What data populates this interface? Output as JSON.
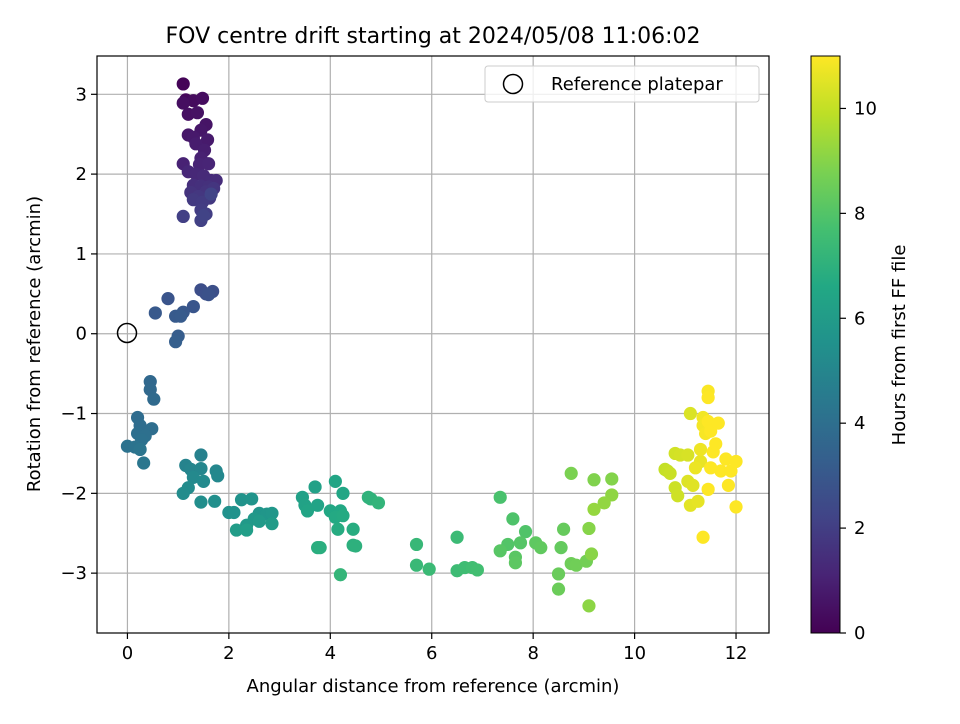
{
  "chart_data": {
    "type": "scatter",
    "title": "FOV centre drift starting at 2024/05/08 11:06:02",
    "xlabel": "Angular distance from reference (arcmin)",
    "ylabel": "Rotation from reference (arcmin)",
    "xlim": [
      -0.6,
      12.65
    ],
    "ylim": [
      -3.75,
      3.48
    ],
    "xticks": [
      "0",
      "2",
      "4",
      "6",
      "8",
      "10",
      "12"
    ],
    "yticks": [
      "−3",
      "−2",
      "−1",
      "0",
      "1",
      "2",
      "3"
    ],
    "grid": true,
    "legend": {
      "placement": "top-right",
      "label": "Reference platepar"
    },
    "reference_point": {
      "x": 0,
      "y": 0
    },
    "colorbar": {
      "label": "Hours from first FF file",
      "range": [
        0,
        11
      ],
      "ticks": [
        "0",
        "2",
        "4",
        "6",
        "8",
        "10"
      ],
      "colormap": "viridis"
    },
    "points": [
      [
        1.1,
        3.13,
        0.1
      ],
      [
        1.15,
        2.93,
        0.2
      ],
      [
        1.3,
        2.92,
        0.3
      ],
      [
        1.48,
        2.95,
        0.35
      ],
      [
        1.1,
        2.89,
        0.4
      ],
      [
        1.2,
        2.75,
        0.45
      ],
      [
        1.38,
        2.77,
        0.5
      ],
      [
        1.55,
        2.62,
        0.6
      ],
      [
        1.45,
        2.55,
        0.65
      ],
      [
        1.2,
        2.49,
        0.7
      ],
      [
        1.3,
        2.46,
        0.75
      ],
      [
        1.58,
        2.43,
        0.8
      ],
      [
        1.35,
        2.38,
        0.85
      ],
      [
        1.52,
        2.3,
        0.9
      ],
      [
        1.45,
        2.2,
        1.0
      ],
      [
        1.1,
        2.13,
        1.05
      ],
      [
        1.42,
        2.12,
        1.1
      ],
      [
        1.6,
        2.13,
        1.15
      ],
      [
        1.2,
        2.03,
        1.2
      ],
      [
        1.35,
        2.0,
        1.25
      ],
      [
        1.5,
        1.98,
        1.3
      ],
      [
        1.65,
        1.92,
        1.35
      ],
      [
        1.75,
        1.92,
        1.4
      ],
      [
        1.3,
        1.86,
        1.45
      ],
      [
        1.45,
        1.85,
        1.5
      ],
      [
        1.6,
        1.84,
        1.55
      ],
      [
        1.25,
        1.77,
        1.6
      ],
      [
        1.55,
        1.78,
        1.65
      ],
      [
        1.7,
        1.82,
        1.7
      ],
      [
        1.4,
        1.72,
        1.75
      ],
      [
        1.62,
        1.7,
        1.8
      ],
      [
        1.3,
        1.68,
        1.85
      ],
      [
        1.48,
        1.65,
        1.9
      ],
      [
        1.45,
        1.55,
        1.95
      ],
      [
        1.55,
        1.5,
        2.0
      ],
      [
        1.1,
        1.47,
        2.05
      ],
      [
        1.45,
        1.42,
        2.1
      ],
      [
        1.5,
        1.48,
        2.15
      ],
      [
        1.65,
        1.75,
        2.2
      ],
      [
        1.45,
        0.55,
        2.6
      ],
      [
        1.68,
        0.53,
        2.65
      ],
      [
        1.55,
        0.5,
        2.7
      ],
      [
        1.6,
        0.49,
        2.75
      ],
      [
        0.8,
        0.44,
        2.85
      ],
      [
        1.3,
        0.34,
        2.9
      ],
      [
        1.1,
        0.27,
        3.0
      ],
      [
        0.55,
        0.26,
        3.05
      ],
      [
        0.95,
        0.22,
        3.1
      ],
      [
        1.05,
        0.22,
        3.15
      ],
      [
        1.0,
        -0.03,
        3.2
      ],
      [
        0.95,
        -0.1,
        3.3
      ],
      [
        0.45,
        -0.6,
        3.7
      ],
      [
        0.45,
        -0.7,
        3.75
      ],
      [
        0.52,
        -0.82,
        3.8
      ],
      [
        0.2,
        -1.05,
        3.85
      ],
      [
        0.25,
        -1.15,
        3.9
      ],
      [
        0.48,
        -1.19,
        3.95
      ],
      [
        0.2,
        -1.25,
        4.0
      ],
      [
        0.35,
        -1.28,
        4.05
      ],
      [
        0.28,
        -1.33,
        4.1
      ],
      [
        0.0,
        -1.41,
        4.15
      ],
      [
        0.15,
        -1.42,
        4.2
      ],
      [
        0.25,
        -1.45,
        4.25
      ],
      [
        0.32,
        -1.62,
        4.3
      ],
      [
        1.45,
        -1.52,
        4.8
      ],
      [
        1.15,
        -1.65,
        4.9
      ],
      [
        1.25,
        -1.7,
        4.95
      ],
      [
        1.45,
        -1.69,
        5.0
      ],
      [
        1.75,
        -1.72,
        5.05
      ],
      [
        1.78,
        -1.78,
        5.1
      ],
      [
        1.3,
        -1.8,
        5.15
      ],
      [
        1.5,
        -1.85,
        5.2
      ],
      [
        1.2,
        -1.93,
        5.25
      ],
      [
        1.1,
        -2.0,
        5.3
      ],
      [
        1.45,
        -2.11,
        5.35
      ],
      [
        1.72,
        -2.1,
        5.4
      ],
      [
        2.0,
        -2.24,
        5.5
      ],
      [
        2.1,
        -2.24,
        5.55
      ],
      [
        2.25,
        -2.08,
        5.6
      ],
      [
        2.45,
        -2.07,
        5.65
      ],
      [
        2.6,
        -2.25,
        5.7
      ],
      [
        2.75,
        -2.26,
        5.75
      ],
      [
        2.85,
        -2.25,
        5.8
      ],
      [
        2.5,
        -2.32,
        5.85
      ],
      [
        2.35,
        -2.4,
        5.9
      ],
      [
        2.6,
        -2.35,
        5.95
      ],
      [
        2.85,
        -2.38,
        6.0
      ],
      [
        2.15,
        -2.46,
        6.05
      ],
      [
        2.35,
        -2.46,
        6.1
      ],
      [
        3.45,
        -2.05,
        6.2
      ],
      [
        3.7,
        -1.92,
        6.25
      ],
      [
        3.5,
        -2.15,
        6.3
      ],
      [
        3.75,
        -2.15,
        6.35
      ],
      [
        3.55,
        -2.22,
        6.4
      ],
      [
        4.1,
        -1.85,
        6.45
      ],
      [
        4.25,
        -2.0,
        6.5
      ],
      [
        4.0,
        -2.22,
        6.55
      ],
      [
        4.2,
        -2.22,
        6.6
      ],
      [
        4.1,
        -2.3,
        6.65
      ],
      [
        4.25,
        -2.28,
        6.7
      ],
      [
        4.15,
        -2.45,
        6.75
      ],
      [
        4.45,
        -2.45,
        6.8
      ],
      [
        3.75,
        -2.68,
        6.85
      ],
      [
        3.8,
        -2.68,
        6.9
      ],
      [
        4.45,
        -2.65,
        6.95
      ],
      [
        4.5,
        -2.66,
        7.0
      ],
      [
        4.75,
        -2.05,
        7.05
      ],
      [
        4.8,
        -2.07,
        7.1
      ],
      [
        4.95,
        -2.12,
        7.15
      ],
      [
        4.2,
        -3.02,
        7.2
      ],
      [
        5.7,
        -2.64,
        7.3
      ],
      [
        5.7,
        -2.9,
        7.35
      ],
      [
        5.95,
        -2.95,
        7.4
      ],
      [
        6.5,
        -2.55,
        7.45
      ],
      [
        6.5,
        -2.97,
        7.5
      ],
      [
        6.65,
        -2.93,
        7.55
      ],
      [
        6.8,
        -2.93,
        7.6
      ],
      [
        6.9,
        -2.96,
        7.65
      ],
      [
        7.35,
        -2.05,
        7.8
      ],
      [
        7.6,
        -2.32,
        7.9
      ],
      [
        7.85,
        -2.48,
        7.95
      ],
      [
        7.5,
        -2.64,
        8.0
      ],
      [
        7.75,
        -2.62,
        8.05
      ],
      [
        7.35,
        -2.72,
        8.1
      ],
      [
        7.65,
        -2.8,
        8.15
      ],
      [
        7.65,
        -2.87,
        8.2
      ],
      [
        8.05,
        -2.62,
        8.25
      ],
      [
        8.15,
        -2.68,
        8.3
      ],
      [
        8.55,
        -2.68,
        8.35
      ],
      [
        8.6,
        -2.45,
        8.4
      ],
      [
        8.5,
        -3.01,
        8.45
      ],
      [
        8.5,
        -3.2,
        8.5
      ],
      [
        8.75,
        -2.88,
        8.55
      ],
      [
        8.85,
        -2.9,
        8.6
      ],
      [
        9.05,
        -2.85,
        8.65
      ],
      [
        8.75,
        -1.75,
        8.8
      ],
      [
        9.2,
        -1.83,
        8.9
      ],
      [
        9.55,
        -1.82,
        8.95
      ],
      [
        9.1,
        -2.44,
        9.0
      ],
      [
        9.15,
        -2.76,
        9.05
      ],
      [
        9.1,
        -3.41,
        9.1
      ],
      [
        9.55,
        -2.02,
        9.15
      ],
      [
        9.4,
        -2.12,
        9.2
      ],
      [
        9.2,
        -2.2,
        9.25
      ],
      [
        10.6,
        -1.7,
        10.0
      ],
      [
        10.65,
        -1.72,
        10.05
      ],
      [
        10.7,
        -1.75,
        10.1
      ],
      [
        10.8,
        -1.93,
        10.15
      ],
      [
        10.85,
        -2.03,
        10.2
      ],
      [
        10.8,
        -1.5,
        10.25
      ],
      [
        10.9,
        -1.52,
        10.3
      ],
      [
        11.05,
        -1.52,
        10.35
      ],
      [
        11.1,
        -1.0,
        10.4
      ],
      [
        11.05,
        -1.85,
        10.45
      ],
      [
        11.15,
        -1.9,
        10.5
      ],
      [
        11.1,
        -2.15,
        10.55
      ],
      [
        11.25,
        -2.1,
        10.6
      ],
      [
        11.3,
        -1.6,
        10.65
      ],
      [
        11.2,
        -1.68,
        10.7
      ],
      [
        11.3,
        -1.45,
        10.75
      ],
      [
        11.35,
        -1.05,
        10.8
      ],
      [
        11.35,
        -1.15,
        10.85
      ],
      [
        11.4,
        -1.25,
        10.9
      ],
      [
        11.45,
        -0.72,
        10.95
      ],
      [
        11.45,
        -0.8,
        11.0
      ],
      [
        11.45,
        -1.1,
        11.0
      ],
      [
        11.5,
        -1.22,
        11.0
      ],
      [
        11.55,
        -1.48,
        11.0
      ],
      [
        11.6,
        -1.38,
        11.0
      ],
      [
        11.5,
        -1.68,
        11.0
      ],
      [
        11.7,
        -1.72,
        11.0
      ],
      [
        11.45,
        -1.95,
        11.0
      ],
      [
        11.35,
        -2.55,
        11.0
      ],
      [
        11.65,
        -1.12,
        11.0
      ],
      [
        11.8,
        -1.57,
        11.0
      ],
      [
        11.85,
        -1.9,
        11.0
      ],
      [
        11.9,
        -1.72,
        11.0
      ],
      [
        12.0,
        -1.6,
        11.0
      ],
      [
        12.0,
        -2.17,
        11.0
      ]
    ]
  }
}
